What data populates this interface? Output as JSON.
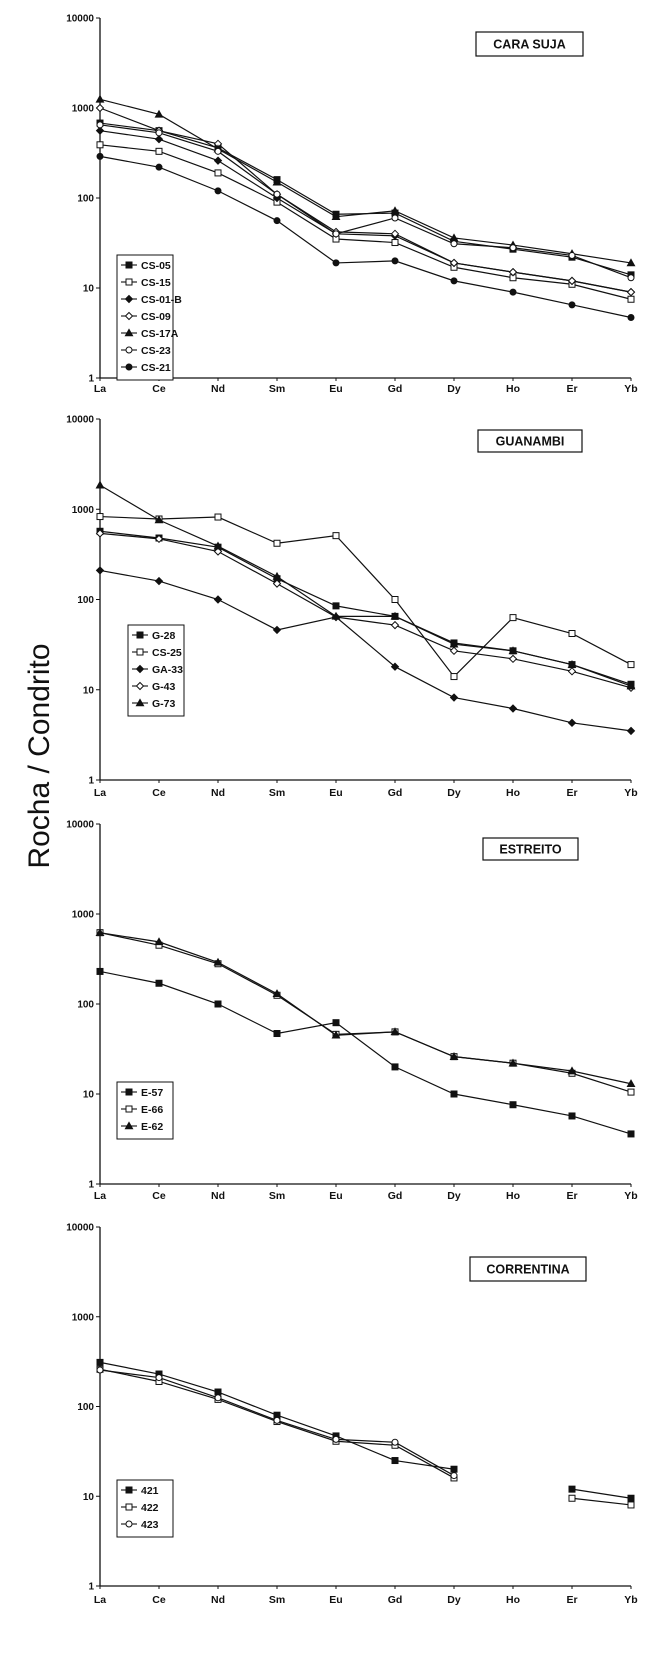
{
  "figure": {
    "ylabel": "Rocha / Condrito"
  },
  "chart_data": [
    {
      "type": "line",
      "title": "CARA SUJA",
      "yscale": "log",
      "ylim": [
        1,
        10000
      ],
      "yticks": [
        "1",
        "10",
        "100",
        "1000",
        "10000"
      ],
      "categories": [
        "La",
        "Ce",
        "Nd",
        "Sm",
        "Eu",
        "Gd",
        "Dy",
        "Ho",
        "Er",
        "Yb"
      ],
      "legend_position": "bottom-left",
      "series": [
        {
          "name": "CS-05",
          "marker": "filled-square",
          "values": [
            680,
            560,
            360,
            160,
            66,
            68,
            33,
            27,
            22,
            14
          ]
        },
        {
          "name": "CS-15",
          "marker": "open-square",
          "values": [
            390,
            330,
            190,
            90,
            35,
            32,
            17,
            13,
            11,
            7.5
          ]
        },
        {
          "name": "CS-01-B",
          "marker": "filled-diamond",
          "values": [
            560,
            450,
            260,
            100,
            40,
            38,
            19,
            15,
            12,
            9
          ]
        },
        {
          "name": "CS-09",
          "marker": "open-diamond",
          "values": [
            1000,
            560,
            400,
            110,
            42,
            40,
            19,
            15,
            12,
            9
          ]
        },
        {
          "name": "CS-17A",
          "marker": "filled-triangle",
          "values": [
            1250,
            850,
            350,
            150,
            62,
            72,
            36,
            30,
            24,
            19
          ]
        },
        {
          "name": "CS-23",
          "marker": "open-circle",
          "values": [
            650,
            530,
            330,
            110,
            40,
            60,
            31,
            28,
            23,
            13
          ]
        },
        {
          "name": "CS-21",
          "marker": "filled-circle",
          "values": [
            290,
            220,
            120,
            56,
            19,
            20,
            12,
            9,
            6.5,
            4.7
          ]
        }
      ]
    },
    {
      "type": "line",
      "title": "GUANAMBI",
      "yscale": "log",
      "ylim": [
        1,
        10000
      ],
      "yticks": [
        "1",
        "10",
        "100",
        "1000",
        "10000"
      ],
      "categories": [
        "La",
        "Ce",
        "Nd",
        "Sm",
        "Eu",
        "Gd",
        "Dy",
        "Ho",
        "Er",
        "Yb"
      ],
      "legend_position": "bottom-left",
      "series": [
        {
          "name": "G-28",
          "marker": "filled-square",
          "values": [
            570,
            480,
            380,
            170,
            85,
            65,
            33,
            27,
            19,
            11.5
          ]
        },
        {
          "name": "CS-25",
          "marker": "open-square",
          "values": [
            830,
            780,
            820,
            420,
            510,
            100,
            14,
            63,
            42,
            19
          ]
        },
        {
          "name": "GA-33",
          "marker": "filled-diamond",
          "values": [
            210,
            160,
            100,
            46,
            64,
            18,
            8.2,
            6.2,
            4.3,
            3.5
          ]
        },
        {
          "name": "G-43",
          "marker": "open-diamond",
          "values": [
            540,
            470,
            340,
            150,
            64,
            52,
            27,
            22,
            16,
            10.5
          ]
        },
        {
          "name": "G-73",
          "marker": "filled-triangle",
          "values": [
            1850,
            760,
            390,
            180,
            65,
            65,
            32,
            27,
            19,
            11
          ]
        }
      ]
    },
    {
      "type": "line",
      "title": "ESTREITO",
      "yscale": "log",
      "ylim": [
        1,
        10000
      ],
      "yticks": [
        "1",
        "10",
        "100",
        "1000",
        "10000"
      ],
      "categories": [
        "La",
        "Ce",
        "Nd",
        "Sm",
        "Eu",
        "Gd",
        "Dy",
        "Ho",
        "Er",
        "Yb"
      ],
      "legend_position": "bottom-left",
      "series": [
        {
          "name": "E-57",
          "marker": "filled-square",
          "values": [
            230,
            170,
            100,
            47,
            62,
            20,
            10,
            7.6,
            5.7,
            3.6
          ]
        },
        {
          "name": "E-66",
          "marker": "open-square",
          "values": [
            620,
            450,
            280,
            125,
            46,
            49,
            26,
            22,
            17,
            10.5
          ]
        },
        {
          "name": "E-62",
          "marker": "filled-triangle",
          "values": [
            620,
            490,
            290,
            130,
            45,
            49,
            26,
            22,
            18,
            13
          ]
        }
      ]
    },
    {
      "type": "line",
      "title": "CORRENTINA",
      "yscale": "log",
      "ylim": [
        1,
        10000
      ],
      "yticks": [
        "1",
        "10",
        "100",
        "1000",
        "10000"
      ],
      "categories": [
        "La",
        "Ce",
        "Nd",
        "Sm",
        "Eu",
        "Gd",
        "Dy",
        "Ho",
        "Er",
        "Yb"
      ],
      "legend_position": "bottom-left",
      "series": [
        {
          "name": "421",
          "marker": "filled-square",
          "values": [
            310,
            230,
            145,
            80,
            47,
            25,
            20,
            null,
            12,
            9.5
          ]
        },
        {
          "name": "422",
          "marker": "open-square",
          "values": [
            260,
            190,
            120,
            68,
            41,
            37,
            16,
            null,
            9.5,
            8
          ]
        },
        {
          "name": "423",
          "marker": "open-circle",
          "values": [
            255,
            210,
            125,
            70,
            43,
            40,
            17,
            null,
            null,
            null
          ]
        }
      ]
    }
  ]
}
